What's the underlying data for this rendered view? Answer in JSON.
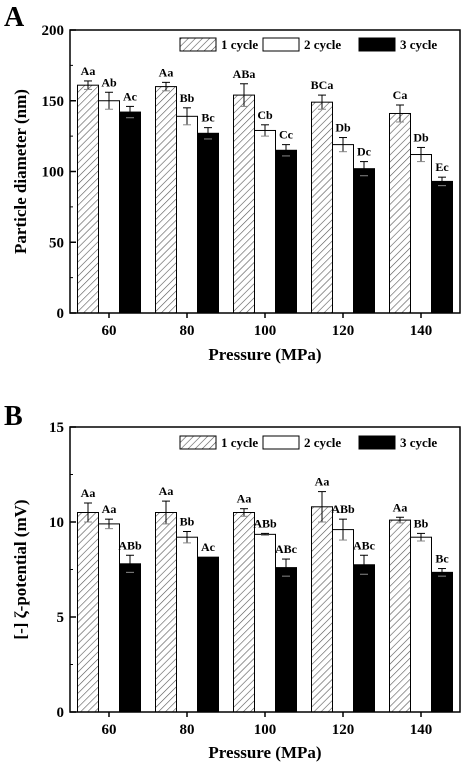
{
  "chart_data": [
    {
      "panel": "A",
      "type": "bar",
      "xlabel": "Pressure (MPa)",
      "ylabel": "Particle diameter (nm)",
      "ylim": [
        0,
        200
      ],
      "yticks": [
        0,
        50,
        100,
        150,
        200
      ],
      "categories": [
        "60",
        "80",
        "100",
        "120",
        "140"
      ],
      "legend_position": "top-right",
      "series": [
        {
          "name": "1 cycle",
          "fill": "hatched",
          "values": [
            161,
            160,
            154,
            149,
            141
          ],
          "errors": [
            3,
            3,
            8,
            5,
            6
          ],
          "labels": [
            "Aa",
            "Aa",
            "ABa",
            "BCa",
            "Ca"
          ]
        },
        {
          "name": "2 cycle",
          "fill": "white",
          "values": [
            150,
            139,
            129,
            119,
            112
          ],
          "errors": [
            6,
            6,
            4,
            5,
            5
          ],
          "labels": [
            "Ab",
            "Bb",
            "Cb",
            "Db",
            "Db"
          ]
        },
        {
          "name": "3 cycle",
          "fill": "black",
          "values": [
            142,
            127,
            115,
            102,
            93
          ],
          "errors": [
            4,
            4,
            4,
            5,
            3
          ],
          "labels": [
            "Ac",
            "Bc",
            "Cc",
            "Dc",
            "Ec"
          ]
        }
      ]
    },
    {
      "panel": "B",
      "type": "bar",
      "xlabel": "Pressure (MPa)",
      "ylabel": "[-] ζ-potential (mV)",
      "ylim": [
        0,
        15
      ],
      "yticks": [
        0,
        5,
        10,
        15
      ],
      "categories": [
        "60",
        "80",
        "100",
        "120",
        "140"
      ],
      "legend_position": "top-right",
      "series": [
        {
          "name": "1 cycle",
          "fill": "hatched",
          "values": [
            10.5,
            10.5,
            10.5,
            10.8,
            10.1
          ],
          "errors": [
            0.5,
            0.6,
            0.2,
            0.8,
            0.15
          ],
          "labels": [
            "Aa",
            "Aa",
            "Aa",
            "Aa",
            "Aa"
          ]
        },
        {
          "name": "2 cycle",
          "fill": "white",
          "values": [
            9.9,
            9.2,
            9.35,
            9.6,
            9.2
          ],
          "errors": [
            0.25,
            0.3,
            0.05,
            0.55,
            0.2
          ],
          "labels": [
            "Aa",
            "Bb",
            "ABb",
            "ABb",
            "Bb"
          ]
        },
        {
          "name": "3 cycle",
          "fill": "black",
          "values": [
            7.8,
            8.15,
            7.6,
            7.75,
            7.35
          ],
          "errors": [
            0.45,
            0.0,
            0.45,
            0.5,
            0.2
          ],
          "labels": [
            "ABb",
            "Ac",
            "ABc",
            "ABc",
            "Bc"
          ]
        }
      ]
    }
  ]
}
